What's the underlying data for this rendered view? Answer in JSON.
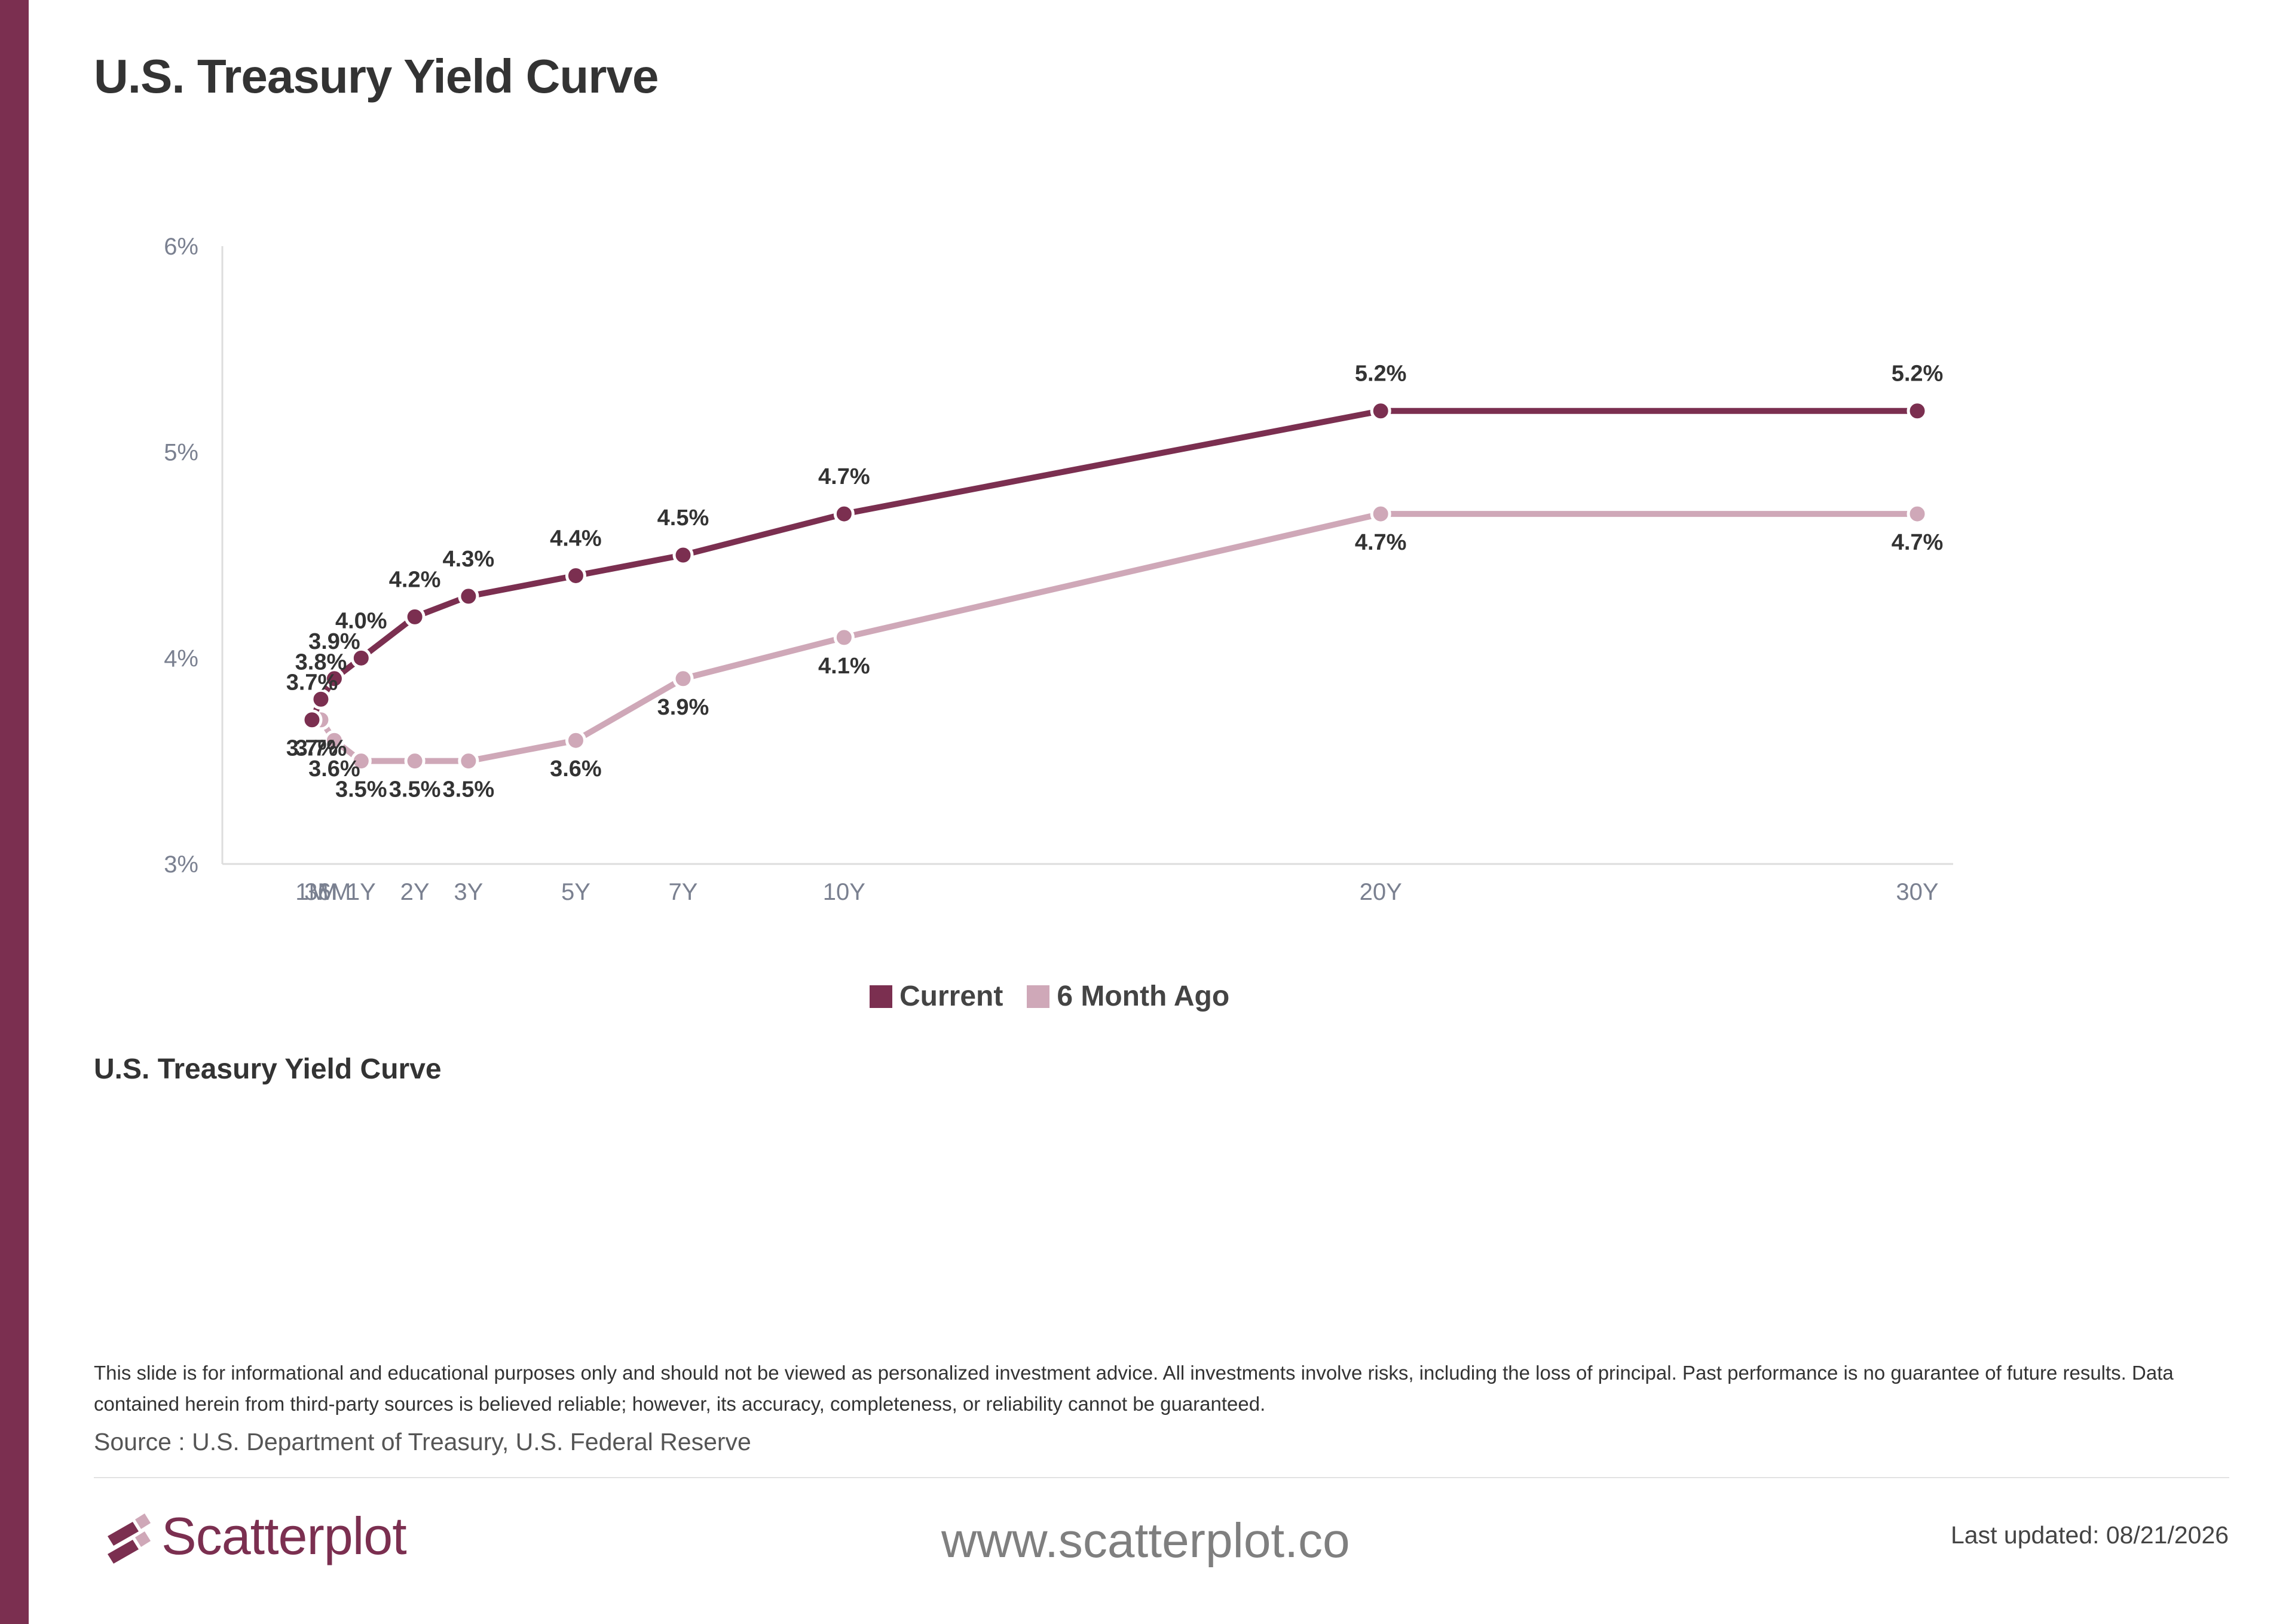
{
  "page": {
    "title": "U.S. Treasury Yield Curve",
    "caption": "U.S. Treasury Yield Curve",
    "disclaimer": "This slide is for informational and educational purposes only and should not be viewed as personalized investment advice. All investments involve risks, including the loss of principal. Past performance is no guarantee of future results. Data contained herein from third-party sources is believed reliable; however, its accuracy, completeness, or reliability cannot be guaranteed.",
    "source": "Source : U.S. Department of Treasury, U.S. Federal Reserve",
    "website": "www.scatterplot.co",
    "last_updated": "Last updated: 08/21/2026",
    "brand": "Scatterplot"
  },
  "colors": {
    "accent": "#7b2f50",
    "current": "#7b2f50",
    "six_month_ago": "#cfa8b8",
    "axis": "#dddddd",
    "tick_text": "#7a8090",
    "label_text": "#333333"
  },
  "icons": {
    "logo": "scatterplot-logo-icon"
  },
  "chart_data": {
    "type": "line",
    "categories": [
      "1M",
      "3M",
      "6M",
      "1Y",
      "2Y",
      "3Y",
      "5Y",
      "7Y",
      "10Y",
      "20Y",
      "30Y"
    ],
    "x_years": [
      0.0833,
      0.25,
      0.5,
      1,
      2,
      3,
      5,
      7,
      10,
      20,
      30
    ],
    "series": [
      {
        "name": "Current",
        "values": [
          3.7,
          3.8,
          3.9,
          4.0,
          4.2,
          4.3,
          4.4,
          4.5,
          4.7,
          5.2,
          5.2
        ],
        "color": "#7b2f50"
      },
      {
        "name": "6 Month Ago",
        "values": [
          3.7,
          3.7,
          3.6,
          3.5,
          3.5,
          3.5,
          3.6,
          3.9,
          4.1,
          4.7,
          4.7
        ],
        "color": "#cfa8b8"
      }
    ],
    "y_ticks": [
      "3%",
      "4%",
      "5%",
      "6%"
    ],
    "ylim": [
      3,
      6
    ],
    "value_suffix": "%",
    "legend": "bottom-center",
    "grid": false
  }
}
